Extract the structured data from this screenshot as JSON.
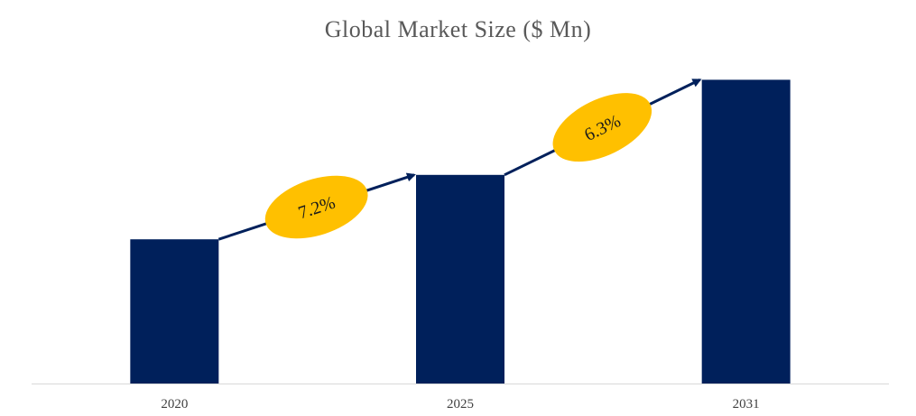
{
  "chart_data": {
    "type": "bar",
    "title": "Global Market Size ($ Mn)",
    "categories": [
      "2020",
      "2025",
      "2031"
    ],
    "values": [
      47,
      68,
      99
    ],
    "ylim": [
      0,
      100
    ],
    "xlabel": "",
    "ylabel": "",
    "grid": false,
    "legend": "none",
    "annotations": [
      {
        "label": "7.2%",
        "from": "2020",
        "to": "2025"
      },
      {
        "label": "6.3%",
        "from": "2025",
        "to": "2031"
      }
    ]
  },
  "colors": {
    "bar": "#00205B",
    "arrow": "#00205B",
    "badge": "#FFC000",
    "axis": "#D9D9D9"
  }
}
